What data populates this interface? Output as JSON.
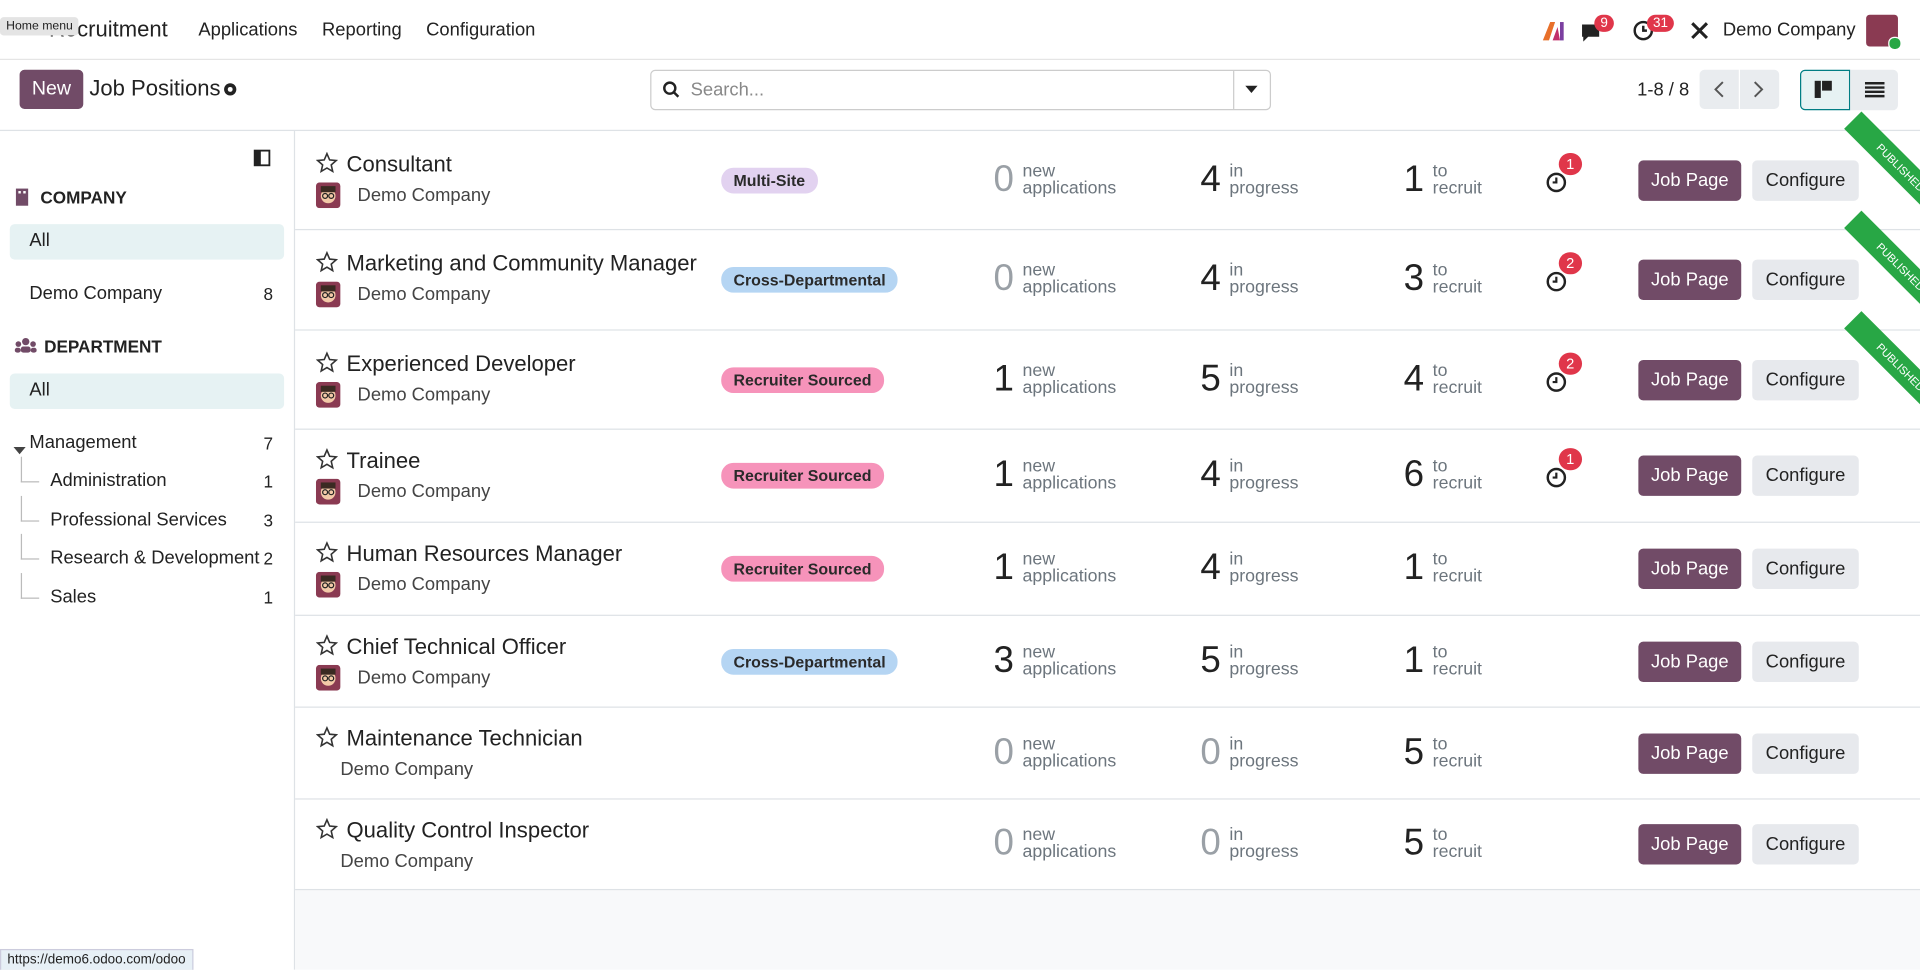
{
  "navbar": {
    "home_tooltip": "Home menu",
    "app_name": "Recruitment",
    "menu": [
      "Applications",
      "Reporting",
      "Configuration"
    ],
    "messages_badge": 9,
    "activities_badge": 31,
    "company": "Demo Company"
  },
  "control_panel": {
    "new_button": "New",
    "title": "Job Positions",
    "search_placeholder": "Search...",
    "pager": "1-8 / 8"
  },
  "sidebar": {
    "sections": [
      {
        "title": "COMPANY",
        "items": [
          {
            "label": "All",
            "selected": true
          },
          {
            "label": "Demo Company",
            "count": 8
          }
        ]
      },
      {
        "title": "DEPARTMENT",
        "items": [
          {
            "label": "All",
            "selected": true
          },
          {
            "label": "Management",
            "count": 7,
            "children": [
              {
                "label": "Administration",
                "count": 1
              },
              {
                "label": "Professional Services",
                "count": 3
              },
              {
                "label": "Research & Development",
                "count": 2
              },
              {
                "label": "Sales",
                "count": 1
              }
            ]
          }
        ]
      }
    ]
  },
  "job_labels": {
    "new": "new applications",
    "in_progress": "in progress",
    "to_recruit": "to recruit",
    "job_page": "Job Page",
    "configure": "Configure",
    "ribbon": "PUBLISHED"
  },
  "jobs": [
    {
      "name": "Consultant",
      "company": "Demo Company",
      "has_avatar": true,
      "tag": "Multi-Site",
      "tag_color": "#e2d2f0",
      "new": 0,
      "in_progress": 4,
      "to_recruit": 1,
      "activities": 1,
      "published": true
    },
    {
      "name": "Marketing and Community Manager",
      "company": "Demo Company",
      "has_avatar": true,
      "tag": "Cross-Departmental",
      "tag_color": "#b5d5f3",
      "new": 0,
      "in_progress": 4,
      "to_recruit": 3,
      "activities": 2,
      "published": true
    },
    {
      "name": "Experienced Developer",
      "company": "Demo Company",
      "has_avatar": true,
      "tag": "Recruiter Sourced",
      "tag_color": "#f693ba",
      "new": 1,
      "in_progress": 5,
      "to_recruit": 4,
      "activities": 2,
      "published": true
    },
    {
      "name": "Trainee",
      "company": "Demo Company",
      "has_avatar": true,
      "tag": "Recruiter Sourced",
      "tag_color": "#f693ba",
      "new": 1,
      "in_progress": 4,
      "to_recruit": 6,
      "activities": 1,
      "published": false
    },
    {
      "name": "Human Resources Manager",
      "company": "Demo Company",
      "has_avatar": true,
      "tag": "Recruiter Sourced",
      "tag_color": "#f693ba",
      "new": 1,
      "in_progress": 4,
      "to_recruit": 1,
      "activities": null,
      "published": false
    },
    {
      "name": "Chief Technical Officer",
      "company": "Demo Company",
      "has_avatar": true,
      "tag": "Cross-Departmental",
      "tag_color": "#b5d5f3",
      "new": 3,
      "in_progress": 5,
      "to_recruit": 1,
      "activities": null,
      "published": false
    },
    {
      "name": "Maintenance Technician",
      "company": "Demo Company",
      "has_avatar": false,
      "tag": null,
      "tag_color": null,
      "new": 0,
      "in_progress": 0,
      "to_recruit": 5,
      "activities": null,
      "published": false
    },
    {
      "name": "Quality Control Inspector",
      "company": "Demo Company",
      "has_avatar": false,
      "tag": null,
      "tag_color": null,
      "new": 0,
      "in_progress": 0,
      "to_recruit": 5,
      "activities": null,
      "published": false
    }
  ],
  "status_url": "https://demo6.odoo.com/odoo"
}
